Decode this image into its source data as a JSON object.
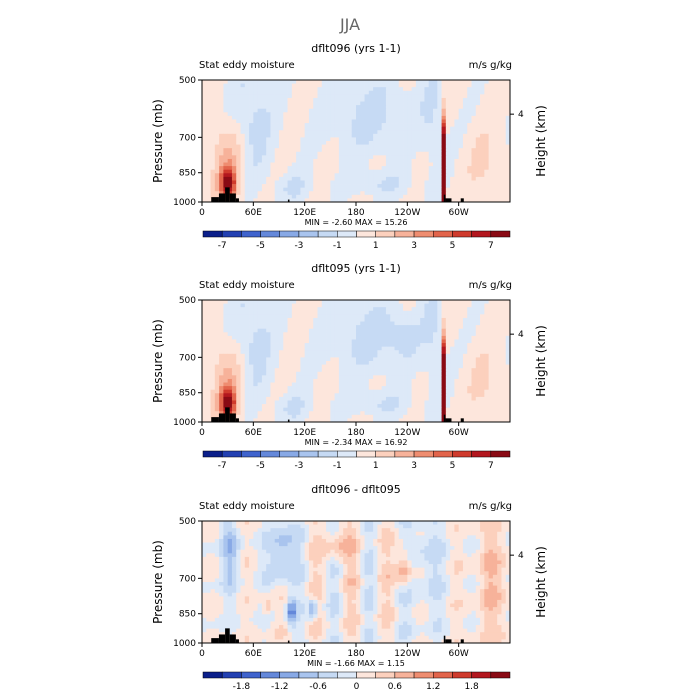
{
  "figure_title": "JJA",
  "colors": {
    "positive": [
      "#fde6dc",
      "#fcd0bd",
      "#f7b29a",
      "#ef8d70",
      "#e2644b",
      "#cf3a2c",
      "#b3171e",
      "#8a0a14"
    ],
    "negative": [
      "#dde9f8",
      "#c6daf4",
      "#a9c4ee",
      "#88a9e6",
      "#6488da",
      "#3f63cd",
      "#2240b2",
      "#0b1f8a"
    ],
    "terrain": "#000000"
  },
  "chart_data": [
    {
      "type": "heatmap",
      "title": "dflt096 (yrs 1-1)",
      "left_label": "Stat eddy moisture",
      "right_label": "m/s g/kg",
      "ylabel": "Pressure (mb)",
      "ylabel_right": "Height (km)",
      "yticks": [
        "500",
        "700",
        "850",
        "1000"
      ],
      "yticks_right": [
        "4"
      ],
      "xticks": [
        "0",
        "60E",
        "120E",
        "180",
        "120W",
        "60W"
      ],
      "stats": "MIN = -2.60 MAX = 15.26",
      "colorbar_labels": [
        "-7",
        "-5",
        "-3",
        "-1",
        "1",
        "3",
        "5",
        "7"
      ],
      "colorbar_max": 8
    },
    {
      "type": "heatmap",
      "title": "dflt095 (yrs 1-1)",
      "left_label": "Stat eddy moisture",
      "right_label": "m/s g/kg",
      "ylabel": "Pressure (mb)",
      "ylabel_right": "Height (km)",
      "yticks": [
        "500",
        "700",
        "850",
        "1000"
      ],
      "yticks_right": [
        "4"
      ],
      "xticks": [
        "0",
        "60E",
        "120E",
        "180",
        "120W",
        "60W"
      ],
      "stats": "MIN = -2.34 MAX = 16.92",
      "colorbar_labels": [
        "-7",
        "-5",
        "-3",
        "-1",
        "1",
        "3",
        "5",
        "7"
      ],
      "colorbar_max": 8
    },
    {
      "type": "heatmap",
      "title": "dflt096 - dflt095",
      "left_label": "Stat eddy moisture",
      "right_label": "m/s g/kg",
      "ylabel": "Pressure (mb)",
      "ylabel_right": "Height (km)",
      "yticks": [
        "500",
        "700",
        "850",
        "1000"
      ],
      "yticks_right": [
        "4"
      ],
      "xticks": [
        "0",
        "60E",
        "120E",
        "180",
        "120W",
        "60W"
      ],
      "stats": "MIN = -1.66 MAX = 1.15",
      "colorbar_labels": [
        "-1.8",
        "-1.2",
        "-0.6",
        "0",
        "0.6",
        "1.2",
        "1.8"
      ],
      "colorbar_max": 2.4
    }
  ]
}
